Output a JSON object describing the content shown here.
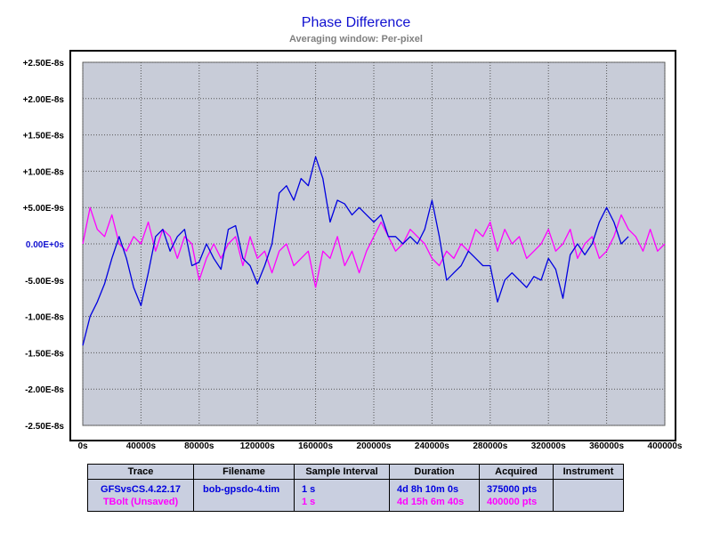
{
  "chart_data": {
    "type": "line",
    "title": "Phase Difference",
    "subtitle": "Averaging window: Per-pixel",
    "xlim": [
      0,
      400000
    ],
    "ylim": [
      -2.5e-08,
      2.5e-08
    ],
    "x_ticks": [
      "0s",
      "40000s",
      "80000s",
      "120000s",
      "160000s",
      "200000s",
      "240000s",
      "280000s",
      "320000s",
      "360000s",
      "400000s"
    ],
    "y_ticks": [
      "+2.50E-8s",
      "+2.00E-8s",
      "+1.50E-8s",
      "+1.00E-8s",
      "+5.00E-9s",
      "0.00E+0s",
      "-5.00E-9s",
      "-1.00E-8s",
      "-1.50E-8s",
      "-2.00E-8s",
      "-2.50E-8s"
    ],
    "grid": true,
    "plot_background": "#c8ccd8",
    "series": [
      {
        "name": "GFSvsCS.4.22.17",
        "color": "#0000e0",
        "x": [
          0,
          5000,
          10000,
          15000,
          20000,
          25000,
          30000,
          35000,
          40000,
          45000,
          50000,
          55000,
          60000,
          65000,
          70000,
          75000,
          80000,
          85000,
          90000,
          95000,
          100000,
          105000,
          110000,
          115000,
          120000,
          125000,
          130000,
          135000,
          140000,
          145000,
          150000,
          155000,
          160000,
          165000,
          170000,
          175000,
          180000,
          185000,
          190000,
          195000,
          200000,
          205000,
          210000,
          215000,
          220000,
          225000,
          230000,
          235000,
          240000,
          245000,
          250000,
          255000,
          260000,
          265000,
          270000,
          275000,
          280000,
          285000,
          290000,
          295000,
          300000,
          305000,
          310000,
          315000,
          320000,
          325000,
          330000,
          335000,
          340000,
          345000,
          350000,
          355000,
          360000,
          365000,
          370000,
          375000
        ],
        "y": [
          -1.4e-08,
          -1e-08,
          -8e-09,
          -5.5e-09,
          -2e-09,
          1e-09,
          -2e-09,
          -6e-09,
          -8.5e-09,
          -4e-09,
          1e-09,
          2e-09,
          -1e-09,
          1e-09,
          2e-09,
          -3e-09,
          -2.5e-09,
          0.0,
          -2e-09,
          -3.5e-09,
          2e-09,
          2.5e-09,
          -2e-09,
          -3e-09,
          -5.5e-09,
          -3e-09,
          0.0,
          7e-09,
          8e-09,
          6e-09,
          9e-09,
          8e-09,
          1.2e-08,
          9e-09,
          3e-09,
          6e-09,
          5.5e-09,
          4e-09,
          5e-09,
          4e-09,
          3e-09,
          4e-09,
          1e-09,
          1e-09,
          0.0,
          1e-09,
          0.0,
          2e-09,
          6e-09,
          1e-09,
          -5e-09,
          -4e-09,
          -3e-09,
          -1e-09,
          -2e-09,
          -3e-09,
          -3e-09,
          -8e-09,
          -5e-09,
          -4e-09,
          -5e-09,
          -6e-09,
          -4.5e-09,
          -5e-09,
          -2e-09,
          -3.5e-09,
          -7.5e-09,
          -1.5e-09,
          0.0,
          -1.5e-09,
          0.0,
          3e-09,
          5e-09,
          3e-09,
          0.0,
          1e-09
        ]
      },
      {
        "name": "TBolt (Unsaved)",
        "color": "#ff00ff",
        "x": [
          0,
          5000,
          10000,
          15000,
          20000,
          25000,
          30000,
          35000,
          40000,
          45000,
          50000,
          55000,
          60000,
          65000,
          70000,
          75000,
          80000,
          85000,
          90000,
          95000,
          100000,
          105000,
          110000,
          115000,
          120000,
          125000,
          130000,
          135000,
          140000,
          145000,
          150000,
          155000,
          160000,
          165000,
          170000,
          175000,
          180000,
          185000,
          190000,
          195000,
          200000,
          205000,
          210000,
          215000,
          220000,
          225000,
          230000,
          235000,
          240000,
          245000,
          250000,
          255000,
          260000,
          265000,
          270000,
          275000,
          280000,
          285000,
          290000,
          295000,
          300000,
          305000,
          310000,
          315000,
          320000,
          325000,
          330000,
          335000,
          340000,
          345000,
          350000,
          355000,
          360000,
          365000,
          370000,
          375000,
          380000,
          385000,
          390000,
          395000,
          400000
        ],
        "y": [
          0.0,
          5e-09,
          2e-09,
          1e-09,
          4e-09,
          0.0,
          -1e-09,
          1e-09,
          0.0,
          3e-09,
          -1e-09,
          2e-09,
          1e-09,
          -2e-09,
          1e-09,
          0.0,
          -5e-09,
          -2e-09,
          0.0,
          -2e-09,
          0.0,
          1e-09,
          -3e-09,
          1e-09,
          -2e-09,
          -1e-09,
          -4e-09,
          -1e-09,
          0.0,
          -3e-09,
          -2e-09,
          -1e-09,
          -6e-09,
          -1e-09,
          -2e-09,
          1e-09,
          -3e-09,
          -1e-09,
          -4e-09,
          -1e-09,
          1e-09,
          3e-09,
          1e-09,
          -1e-09,
          0.0,
          2e-09,
          1e-09,
          0.0,
          -2e-09,
          -3e-09,
          -1e-09,
          -2e-09,
          0.0,
          -1e-09,
          2e-09,
          1e-09,
          3e-09,
          -1e-09,
          2e-09,
          0.0,
          1e-09,
          -2e-09,
          -1e-09,
          0.0,
          2e-09,
          -1e-09,
          0.0,
          2e-09,
          -2e-09,
          0.0,
          1e-09,
          -2e-09,
          -1e-09,
          1e-09,
          4e-09,
          2e-09,
          1e-09,
          -1e-09,
          2e-09,
          -1e-09,
          0.0
        ]
      }
    ]
  },
  "legend_table": {
    "headers": [
      "Trace",
      "Filename",
      "Sample Interval",
      "Duration",
      "Acquired",
      "Instrument"
    ],
    "rows": [
      {
        "trace": "GFSvsCS.4.22.17",
        "filename": "bob-gpsdo-4.tim",
        "interval": "1 s",
        "duration": "4d 8h 10m 0s",
        "acquired": "375000 pts",
        "instrument": "",
        "color": "#0000e0"
      },
      {
        "trace": "TBolt (Unsaved)",
        "filename": "",
        "interval": "1 s",
        "duration": "4d 15h 6m 40s",
        "acquired": "400000 pts",
        "instrument": "",
        "color": "#ff00ff"
      }
    ]
  }
}
